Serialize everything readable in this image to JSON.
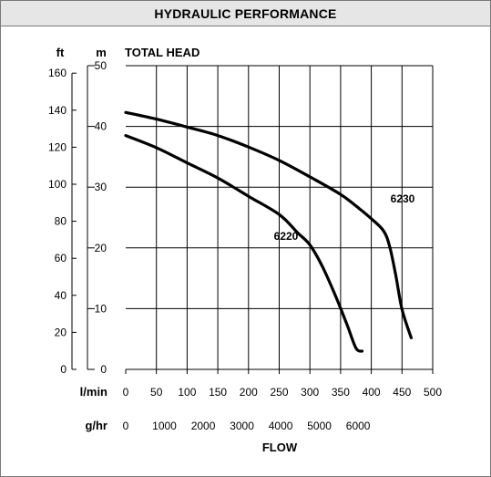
{
  "chart_data": {
    "type": "line",
    "title": "HYDRAULIC PERFORMANCE",
    "subtitle": "TOTAL HEAD",
    "xlabel": "FLOW",
    "x_unit_primary": "l/min",
    "x_unit_secondary": "g/hr",
    "y_unit_primary": "m",
    "y_unit_secondary": "ft",
    "xlim": [
      0,
      500
    ],
    "ylim": [
      0,
      50
    ],
    "grid": true,
    "x_ticks": [
      "0",
      "50",
      "100",
      "150",
      "200",
      "250",
      "300",
      "350",
      "400",
      "450",
      "500"
    ],
    "x_ticks_secondary": [
      "0",
      "1000",
      "2000",
      "3000",
      "4000",
      "5000",
      "6000"
    ],
    "y_ticks": [
      "0",
      "10",
      "20",
      "30",
      "40",
      "50"
    ],
    "y_ticks_secondary": [
      "0",
      "20",
      "40",
      "60",
      "80",
      "100",
      "120",
      "140",
      "160"
    ],
    "series": [
      {
        "name": "6220",
        "x": [
          0,
          50,
          100,
          150,
          200,
          250,
          280,
          300,
          320,
          340,
          360,
          375,
          385
        ],
        "y": [
          38.5,
          36.5,
          34,
          31.5,
          28.5,
          25.5,
          22.5,
          20.5,
          17,
          12.5,
          7.5,
          3.5,
          3
        ]
      },
      {
        "name": "6230",
        "x": [
          0,
          50,
          100,
          150,
          200,
          250,
          300,
          350,
          380,
          400,
          420,
          430,
          440,
          450,
          465
        ],
        "y": [
          42.3,
          41.2,
          39.9,
          38.5,
          36.6,
          34.4,
          31.7,
          28.8,
          26.5,
          24.8,
          22.8,
          20.2,
          15.4,
          9.9,
          5.2
        ]
      }
    ],
    "colors": {
      "line": "#000000",
      "grid": "#000000",
      "header_bg": "#e6e6e6",
      "border": "#7a7a7a"
    }
  }
}
